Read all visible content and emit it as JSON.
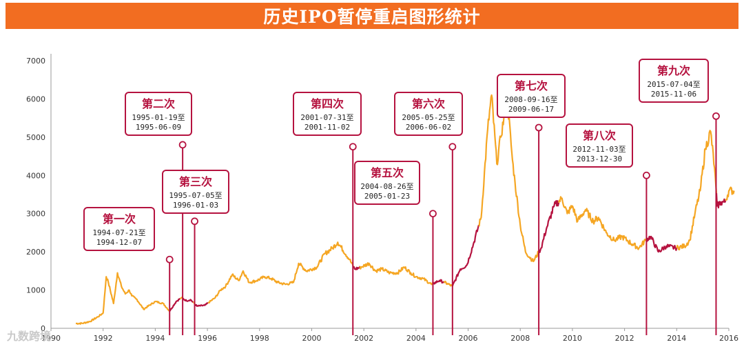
{
  "header": {
    "title": "历史IPO暂停重启图形统计"
  },
  "watermark": "九数跨境",
  "colors": {
    "banner": "#f26d21",
    "normal": "#f5a623",
    "paused": "#b5123f",
    "box_border": "#b5123f"
  },
  "chart_data": {
    "type": "line",
    "title": "历史IPO暂停重启图形统计",
    "xlabel": "",
    "ylabel": "",
    "xlim": [
      1990,
      2016
    ],
    "ylim": [
      0,
      7000
    ],
    "x_ticks": [
      "1990",
      "1992",
      "1994",
      "1996",
      "1998",
      "2000",
      "2002",
      "2004",
      "2006",
      "2008",
      "2010",
      "2012",
      "2014",
      "2016"
    ],
    "y_ticks": [
      "0",
      "1000",
      "2000",
      "3000",
      "4000",
      "5000",
      "6000",
      "7000"
    ],
    "grid": false,
    "series": [
      {
        "x": [
          1990.95,
          1991.2,
          1991.5,
          1991.8,
          1992.0,
          1992.12,
          1992.2,
          1992.4,
          1992.55,
          1992.7,
          1992.85,
          1993.0,
          1993.1,
          1993.3,
          1993.55,
          1994.0,
          1994.3,
          1994.55,
          1994.8,
          1995.0,
          1995.2,
          1995.35,
          1995.6,
          1995.9,
          1996.3,
          1996.5,
          1996.7,
          1996.95,
          1997.2,
          1997.37,
          1997.6,
          1997.9,
          1998.2,
          1998.45,
          1998.7,
          1999.0,
          1999.3,
          1999.5,
          1999.8,
          2000.2,
          2000.5,
          2000.8,
          2001.0,
          2001.45,
          2001.65,
          2001.9,
          2002.2,
          2002.45,
          2002.7,
          2003.0,
          2003.3,
          2003.55,
          2003.8,
          2004.0,
          2004.27,
          2004.6,
          2004.9,
          2005.1,
          2005.4,
          2005.7,
          2005.95,
          2006.2,
          2006.5,
          2006.75,
          2006.9,
          2007.1,
          2007.25,
          2007.5,
          2007.7,
          2007.8,
          2008.0,
          2008.2,
          2008.5,
          2008.8,
          2009.0,
          2009.3,
          2009.6,
          2009.8,
          2010.0,
          2010.2,
          2010.5,
          2010.8,
          2011.0,
          2011.3,
          2011.6,
          2011.9,
          2012.1,
          2012.3,
          2012.55,
          2012.8,
          2013.0,
          2013.3,
          2013.6,
          2013.95,
          2014.3,
          2014.5,
          2014.7,
          2014.9,
          2015.1,
          2015.3,
          2015.45,
          2015.55,
          2015.7,
          2015.85,
          2016.0,
          2016.2
        ],
        "y": [
          127,
          130,
          180,
          300,
          400,
          1350,
          1200,
          650,
          1450,
          1100,
          900,
          1000,
          850,
          750,
          500,
          700,
          650,
          450,
          700,
          800,
          720,
          750,
          580,
          600,
          800,
          1000,
          1100,
          1400,
          1250,
          1500,
          1200,
          1250,
          1350,
          1300,
          1200,
          1150,
          1200,
          1700,
          1500,
          1600,
          1950,
          2100,
          2250,
          1800,
          1550,
          1600,
          1700,
          1500,
          1550,
          1450,
          1450,
          1600,
          1450,
          1350,
          1300,
          1150,
          1250,
          1200,
          1100,
          1550,
          1650,
          2200,
          2900,
          5200,
          6100,
          4300,
          5000,
          6000,
          4400,
          3800,
          2700,
          2000,
          1750,
          2100,
          2600,
          3200,
          3400,
          3000,
          3200,
          2800,
          3100,
          2800,
          2900,
          2500,
          2300,
          2400,
          2300,
          2200,
          2100,
          2300,
          2400,
          2000,
          2150,
          2100,
          2150,
          2300,
          3000,
          3600,
          4700,
          5150,
          4200,
          3200,
          3300,
          3300,
          3600,
          3600
        ],
        "paused": [
          [
            1994.55,
            1994.94
          ],
          [
            1995.05,
            1995.44
          ],
          [
            1995.51,
            1996.01
          ],
          [
            2001.58,
            2001.84
          ],
          [
            2004.65,
            2005.06
          ],
          [
            2005.4,
            2006.42
          ],
          [
            2008.71,
            2009.46
          ],
          [
            2012.84,
            2013.99
          ],
          [
            2015.51,
            2015.85
          ]
        ]
      }
    ],
    "annotations": [
      {
        "title": "第一次",
        "line1": "1994-07-21至",
        "line2": "1994-12-07",
        "x": 1994.55,
        "marker_y": 1800
      },
      {
        "title": "第二次",
        "line1": "1995-01-19至",
        "line2": "1995-06-09",
        "x": 1995.05,
        "marker_y": 4800
      },
      {
        "title": "第三次",
        "line1": "1995-07-05至",
        "line2": "1996-01-03",
        "x": 1995.51,
        "marker_y": 2800
      },
      {
        "title": "第四次",
        "line1": "2001-07-31至",
        "line2": "2001-11-02",
        "x": 2001.58,
        "marker_y": 4750
      },
      {
        "title": "第五次",
        "line1": "2004-08-26至",
        "line2": "2005-01-23",
        "x": 2004.65,
        "marker_y": 3000
      },
      {
        "title": "第六次",
        "line1": "2005-05-25至",
        "line2": "2006-06-02",
        "x": 2005.4,
        "marker_y": 4750
      },
      {
        "title": "第七次",
        "line1": "2008-09-16至",
        "line2": "2009-06-17",
        "x": 2008.71,
        "marker_y": 5250
      },
      {
        "title": "第八次",
        "line1": "2012-11-03至",
        "line2": "2013-12-30",
        "x": 2012.84,
        "marker_y": 4000
      },
      {
        "title": "第九次",
        "line1": "2015-07-04至",
        "line2": "2015-11-06",
        "x": 2015.51,
        "marker_y": 5550
      }
    ]
  }
}
